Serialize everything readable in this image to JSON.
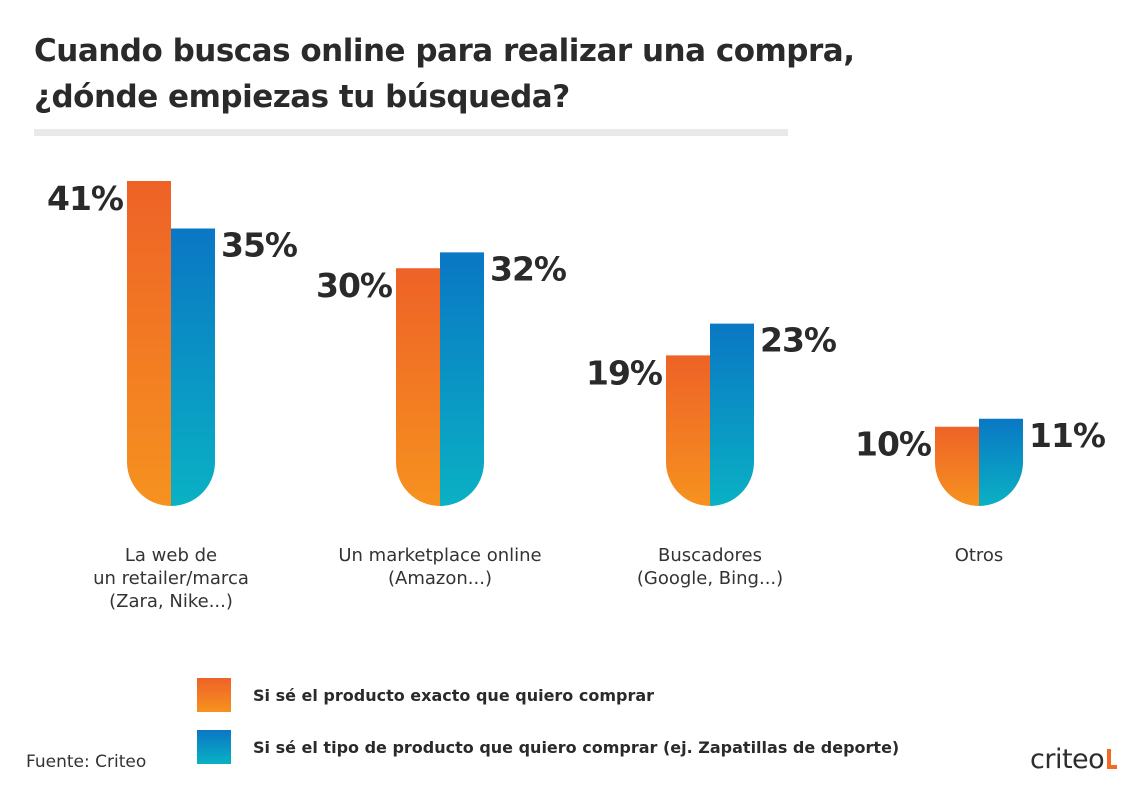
{
  "title_lines": [
    "Cuando buscas online para realizar una compra,",
    "¿dónde empiezas tu búsqueda?"
  ],
  "chart_data": {
    "type": "bar",
    "categories": [
      [
        "La web de",
        "un retailer/marca",
        "(Zara, Nike...)"
      ],
      [
        "Un marketplace online",
        "(Amazon...)"
      ],
      [
        "Buscadores",
        "(Google, Bing...)"
      ],
      [
        "Otros"
      ]
    ],
    "series": [
      {
        "name": "Si sé el producto exacto que quiero comprar",
        "values": [
          41,
          30,
          19,
          10
        ],
        "labels": [
          "41%",
          "30%",
          "19%",
          "10%"
        ],
        "color_top": "#ee6227",
        "color_bottom": "#f6921f"
      },
      {
        "name": "Si sé el tipo de producto que quiero comprar (ej. Zapatillas de deporte)",
        "values": [
          35,
          32,
          23,
          11
        ],
        "labels": [
          "35%",
          "32%",
          "23%",
          "11%"
        ],
        "color_top": "#0a77c4",
        "color_bottom": "#0ab1c4"
      }
    ],
    "unit": "%",
    "ylim": [
      0,
      41
    ]
  },
  "legend": [
    {
      "label": "Si sé el producto exacto que quiero comprar",
      "swatch": "orange"
    },
    {
      "label": "Si sé el tipo de producto que quiero comprar (ej. Zapatillas de deporte)",
      "swatch": "blue"
    }
  ],
  "source": "Fuente: Criteo",
  "logo": "criteo"
}
